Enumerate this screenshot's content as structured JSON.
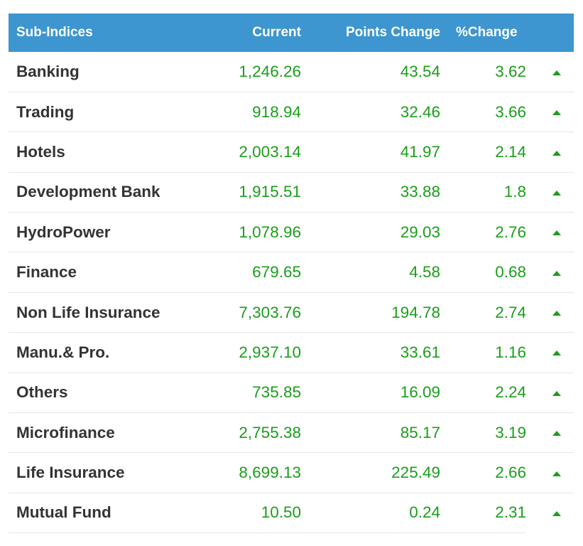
{
  "table": {
    "headers": {
      "name": "Sub-Indices",
      "current": "Current",
      "points_change": "Points Change",
      "pct_change": "%Change"
    },
    "up_color": "#1a9e1a",
    "header_color": "#3d96cf",
    "rows": [
      {
        "name": "Banking",
        "current": "1,246.26",
        "points_change": "43.54",
        "pct_change": "3.62",
        "trend_icon": "triangle-up-icon"
      },
      {
        "name": "Trading",
        "current": "918.94",
        "points_change": "32.46",
        "pct_change": "3.66",
        "trend_icon": "triangle-up-icon"
      },
      {
        "name": "Hotels",
        "current": "2,003.14",
        "points_change": "41.97",
        "pct_change": "2.14",
        "trend_icon": "triangle-up-icon"
      },
      {
        "name": "Development Bank",
        "current": "1,915.51",
        "points_change": "33.88",
        "pct_change": "1.8",
        "trend_icon": "triangle-up-icon"
      },
      {
        "name": "HydroPower",
        "current": "1,078.96",
        "points_change": "29.03",
        "pct_change": "2.76",
        "trend_icon": "triangle-up-icon"
      },
      {
        "name": "Finance",
        "current": "679.65",
        "points_change": "4.58",
        "pct_change": "0.68",
        "trend_icon": "triangle-up-icon"
      },
      {
        "name": "Non Life Insurance",
        "current": "7,303.76",
        "points_change": "194.78",
        "pct_change": "2.74",
        "trend_icon": "triangle-up-icon"
      },
      {
        "name": "Manu.& Pro.",
        "current": "2,937.10",
        "points_change": "33.61",
        "pct_change": "1.16",
        "trend_icon": "triangle-up-icon"
      },
      {
        "name": "Others",
        "current": "735.85",
        "points_change": "16.09",
        "pct_change": "2.24",
        "trend_icon": "triangle-up-icon"
      },
      {
        "name": "Microfinance",
        "current": "2,755.38",
        "points_change": "85.17",
        "pct_change": "3.19",
        "trend_icon": "triangle-up-icon"
      },
      {
        "name": "Life Insurance",
        "current": "8,699.13",
        "points_change": "225.49",
        "pct_change": "2.66",
        "trend_icon": "triangle-up-icon"
      },
      {
        "name": "Mutual Fund",
        "current": "10.50",
        "points_change": "0.24",
        "pct_change": "2.31",
        "trend_icon": "triangle-up-icon"
      }
    ]
  }
}
